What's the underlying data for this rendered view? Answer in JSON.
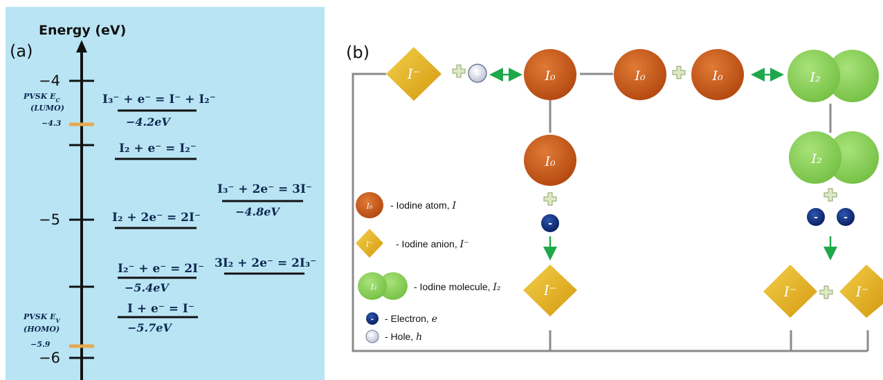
{
  "panel_a": {
    "label": "(a)",
    "axis_title": "Energy (eV)",
    "ticks": [
      "−4",
      "−5",
      "−6"
    ],
    "background": "#b9e4f4",
    "band_marker_color": "#e8a94f",
    "pvsk_ec_label": [
      "PVSK E",
      "C",
      "(LUMO)"
    ],
    "pvsk_ec_value": "−4.3",
    "pvsk_ev_label": [
      "PVSK E",
      "V",
      "(HOMO)"
    ],
    "pvsk_ev_value": "−5.9",
    "reactions": [
      {
        "equation": "I₃⁻ + e⁻ = I⁻ + I₂⁻",
        "energy": "−4.2eV"
      },
      {
        "equation": "I₂ + e⁻ = I₂⁻",
        "energy": ""
      },
      {
        "equation": "I₃⁻ + 2e⁻ = 3I⁻",
        "energy": "−4.8eV"
      },
      {
        "equation": "I₂ + 2e⁻ = 2I⁻",
        "energy": ""
      },
      {
        "equation": "I₂⁻ + e⁻ = 2I⁻",
        "energy": "−5.4eV"
      },
      {
        "equation": "3I₂ + 2e⁻ = 2I₃⁻",
        "energy": ""
      },
      {
        "equation": "I + e⁻ = I⁻",
        "energy": "−5.7eV"
      }
    ]
  },
  "panel_b": {
    "label": "(b)",
    "species": {
      "anion": "I⁻",
      "atom": "I₀",
      "molecule": "I₂",
      "electron": "-",
      "hole": "+",
      "plus": "+"
    },
    "legend": [
      {
        "icon": "iodine-atom",
        "icon_text": "I₀",
        "text": "- Iodine atom, ",
        "symbol": "I"
      },
      {
        "icon": "iodine-anion",
        "icon_text": "I⁻",
        "text": "- Iodine anion, ",
        "symbol": "I⁻"
      },
      {
        "icon": "iodine-molecule",
        "icon_text": "I₂",
        "text": "- Iodine molecule, ",
        "symbol": "I₂"
      },
      {
        "icon": "electron",
        "icon_text": "",
        "text": "- Electron, ",
        "symbol": "e"
      },
      {
        "icon": "hole",
        "icon_text": "",
        "text": "- Hole, ",
        "symbol": "h"
      }
    ],
    "colors": {
      "atom": "#c8581a",
      "anion": "#e6b620",
      "molecule": "#8fd45a",
      "electron": "#0d2a7a",
      "hole": "#dfe3ee",
      "arrow": "#1fa84a",
      "connector": "#8a8a8a",
      "plus": "#dde8c4"
    }
  }
}
